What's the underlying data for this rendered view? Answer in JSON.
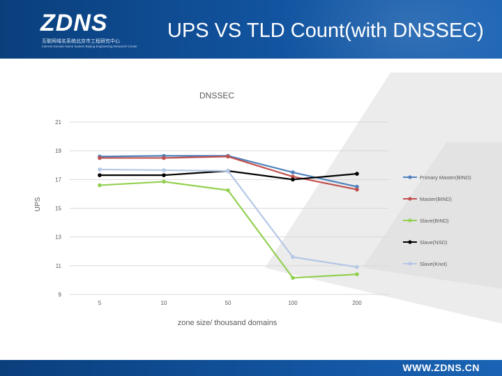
{
  "header": {
    "logo_text": "ZDNS",
    "logo_subtitle_cn": "互联网域名系统北京市工程研究中心",
    "logo_subtitle_en": "Internet Domain Name System Beijing Engineering Research Center",
    "title": "UPS VS TLD Count(with DNSSEC)"
  },
  "footer": {
    "url": "WWW.ZDNS.CN"
  },
  "colors": {
    "header_bg": "#1254a0",
    "primary_master": "#4f81bd",
    "master": "#c0504d",
    "slave_bind": "#92d050",
    "slave_nsd": "#000000",
    "slave_knot": "#b4c7e7"
  },
  "chart_data": {
    "type": "line",
    "title": "DNSSEC",
    "xlabel": "zone size/ thousand domains",
    "ylabel": "UPS",
    "categories": [
      "5",
      "10",
      "50",
      "100",
      "200"
    ],
    "ylim": [
      9,
      21
    ],
    "yticks": [
      9,
      11,
      13,
      15,
      17,
      19,
      21
    ],
    "grid": true,
    "legend_position": "right",
    "series": [
      {
        "name": "Primary Master(BIND)",
        "color": "#4f81bd",
        "values": [
          18.6,
          18.65,
          18.65,
          17.5,
          16.5
        ]
      },
      {
        "name": "Master(BIND)",
        "color": "#c0504d",
        "values": [
          18.5,
          18.5,
          18.6,
          17.2,
          16.3
        ]
      },
      {
        "name": "Slave(BIND)",
        "color": "#92d050",
        "values": [
          16.6,
          16.85,
          16.25,
          10.15,
          10.4
        ]
      },
      {
        "name": "Slave(NSD)",
        "color": "#000000",
        "values": [
          17.3,
          17.3,
          17.6,
          17.0,
          17.4
        ]
      },
      {
        "name": "Slave(Knot)",
        "color": "#b4c7e7",
        "values": [
          17.7,
          17.65,
          17.6,
          11.6,
          10.9
        ]
      }
    ]
  }
}
